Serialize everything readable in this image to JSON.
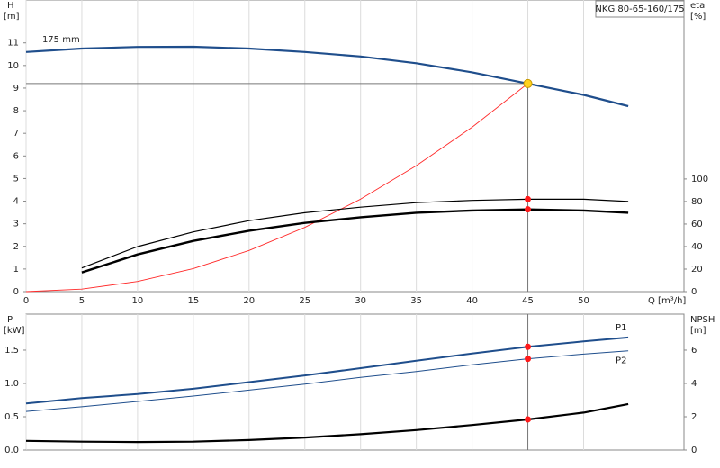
{
  "chart_data": [
    {
      "type": "line",
      "title": "NKG 80-65-160/175",
      "ylabel": "H",
      "ylabel_unit": "[m]",
      "y2label": "eta",
      "y2label_unit": "[%]",
      "xlabel": "Q [m³/h]",
      "x": [
        0,
        5,
        10,
        15,
        20,
        25,
        30,
        35,
        40,
        45,
        50,
        54
      ],
      "xlim": [
        0,
        59
      ],
      "xticks": [
        0,
        5,
        10,
        15,
        20,
        25,
        30,
        35,
        40,
        45,
        50
      ],
      "ylim": [
        0,
        12.9
      ],
      "yticks": [
        0,
        1,
        2,
        3,
        4,
        5,
        6,
        7,
        8,
        9,
        10,
        11
      ],
      "y2lim": [
        0,
        259
      ],
      "y2ticks": [
        0,
        20,
        40,
        60,
        80,
        100
      ],
      "grid": true,
      "duty_point": {
        "q": 45,
        "h": 9.2
      },
      "series": [
        {
          "name": "175 mm",
          "color": "#1f4e8c",
          "width": 2.2,
          "axis": "y",
          "values": [
            10.6,
            10.75,
            10.82,
            10.83,
            10.75,
            10.6,
            10.4,
            10.1,
            9.7,
            9.2,
            8.7,
            8.2
          ]
        },
        {
          "color": "#ff2a2a",
          "width": 0.9,
          "axis": "y",
          "values": [
            0,
            0.11,
            0.45,
            1.02,
            1.82,
            2.84,
            4.09,
            5.57,
            7.27,
            9.2,
            null,
            null
          ]
        },
        {
          "color": "#000000",
          "width": 1.2,
          "axis": "y2",
          "values": [
            null,
            21,
            40,
            53,
            63,
            70,
            75,
            79,
            81,
            82,
            82,
            80
          ]
        },
        {
          "color": "#000000",
          "width": 2.4,
          "axis": "y2",
          "values": [
            null,
            17,
            33,
            45,
            54,
            61,
            66,
            70,
            72,
            73,
            72,
            70
          ]
        }
      ]
    },
    {
      "type": "line",
      "ylabel": "P",
      "ylabel_unit": "[kW]",
      "y2label": "NPSH",
      "y2label_unit": "[m]",
      "x": [
        0,
        5,
        10,
        15,
        20,
        25,
        30,
        35,
        40,
        45,
        50,
        54
      ],
      "xlim": [
        0,
        59
      ],
      "xticks": [
        0,
        5,
        10,
        15,
        20,
        25,
        30,
        35,
        40,
        45,
        50
      ],
      "ylim": [
        0,
        2.04
      ],
      "yticks": [
        {
          "value": 0,
          "label": "0.0"
        },
        0.5,
        {
          "value": 1,
          "label": "1.0"
        },
        1.5
      ],
      "y2lim": [
        0,
        8.16
      ],
      "y2ticks": [
        0,
        2,
        4,
        6
      ],
      "grid": true,
      "duty_point": {
        "q": 45
      },
      "series": [
        {
          "name": "P1",
          "color": "#1f4e8c",
          "width": 2,
          "axis": "y",
          "values": [
            0.7,
            0.78,
            0.84,
            0.92,
            1.02,
            1.12,
            1.23,
            1.34,
            1.45,
            1.55,
            1.63,
            1.69
          ]
        },
        {
          "name": "P2",
          "color": "#1f4e8c",
          "width": 1,
          "axis": "y",
          "values": [
            0.58,
            0.65,
            0.73,
            0.81,
            0.9,
            0.99,
            1.09,
            1.18,
            1.28,
            1.37,
            1.44,
            1.49
          ]
        },
        {
          "color": "#000000",
          "width": 2.2,
          "axis": "y2",
          "values": [
            0.55,
            0.5,
            0.48,
            0.5,
            0.6,
            0.75,
            0.95,
            1.2,
            1.5,
            1.84,
            2.25,
            2.76
          ]
        }
      ]
    }
  ]
}
